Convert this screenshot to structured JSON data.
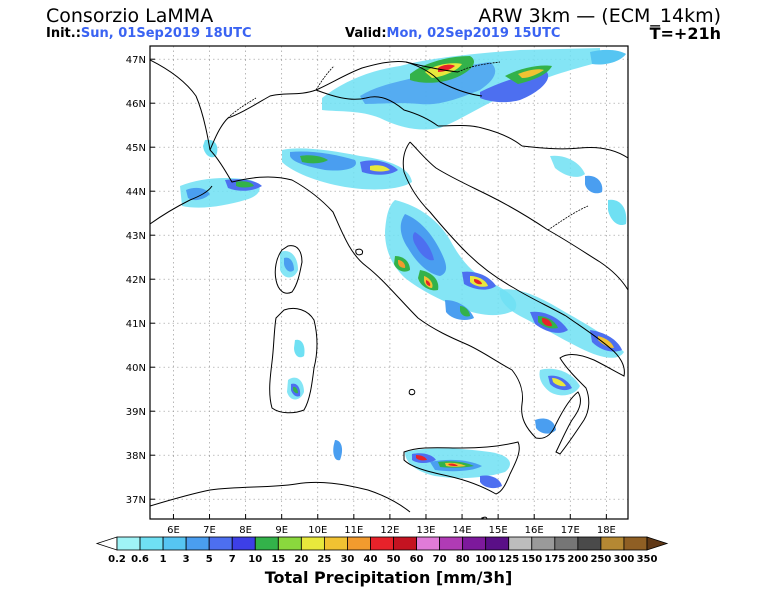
{
  "header": {
    "org": "Consorzio LaMMA",
    "model": "ARW 3km — (ECM_14km)",
    "init_label": "Init.:",
    "init_value": "Sun, 01Sep2019 18UTC",
    "valid_label": "Valid:",
    "valid_value": "Mon, 02Sep2019 15UTC",
    "lead": "T=+21h"
  },
  "map": {
    "lat_labels": [
      "47N",
      "46N",
      "45N",
      "44N",
      "43N",
      "42N",
      "41N",
      "40N",
      "39N",
      "38N",
      "37N"
    ],
    "lon_labels": [
      "6E",
      "7E",
      "8E",
      "9E",
      "10E",
      "11E",
      "12E",
      "13E",
      "14E",
      "15E",
      "16E",
      "17E",
      "18E"
    ],
    "extent": {
      "lon_min": 5.35,
      "lon_max": 18.6,
      "lat_min": 36.55,
      "lat_max": 47.3
    }
  },
  "legend": {
    "title": "Total Precipitation [mm/3h]",
    "ticks": [
      "0.2",
      "0.6",
      "1",
      "3",
      "5",
      "7",
      "10",
      "15",
      "20",
      "25",
      "30",
      "40",
      "50",
      "60",
      "70",
      "80",
      "100",
      "125",
      "150",
      "175",
      "200",
      "250",
      "300",
      "350"
    ],
    "colors": [
      "#ffffff",
      "#9ff3f6",
      "#6fe0f3",
      "#56c5f2",
      "#4a9ef0",
      "#4d6ff0",
      "#3d3fe7",
      "#33b24a",
      "#8ad83d",
      "#e8e83c",
      "#f1c232",
      "#f29b2e",
      "#e7222a",
      "#c41321",
      "#e07bd8",
      "#b03bb5",
      "#7d199c",
      "#5a0f87",
      "#bdbdbd",
      "#9a9a9a",
      "#767676",
      "#4a4a4a",
      "#b58833",
      "#8f5f24",
      "#5f3816"
    ]
  }
}
